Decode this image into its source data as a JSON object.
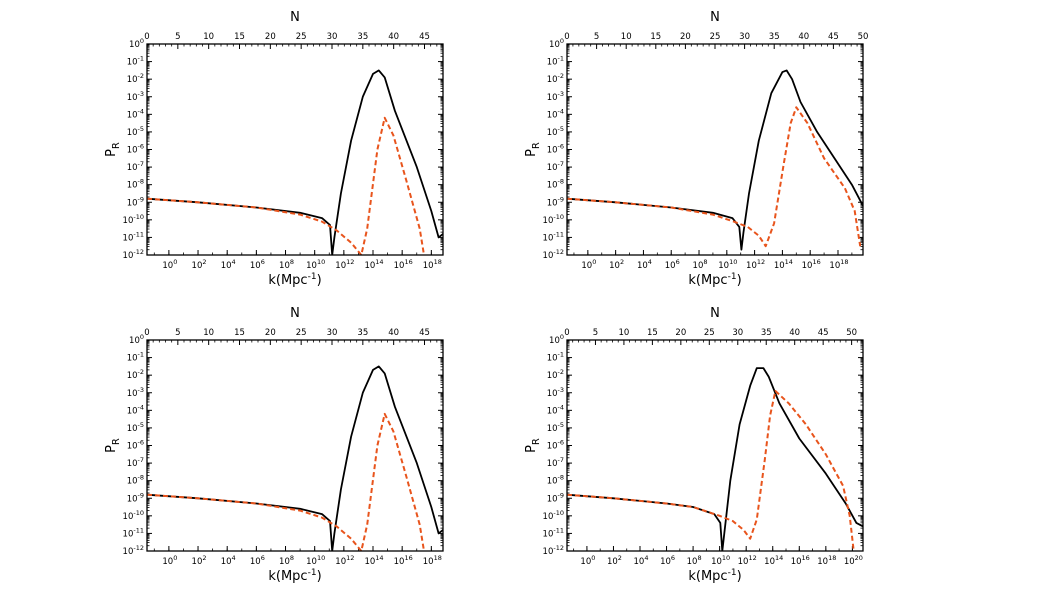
{
  "chart_data": [
    {
      "type": "line",
      "xscale": "log",
      "yscale": "log",
      "xlabel": "k(Mpc",
      "xlabel_sup": "-1",
      "xlabel_end": ")",
      "ylabel": "P",
      "ylabel_sub": "R",
      "top_label": "N",
      "xlim_log10": [
        -1.5,
        18.8
      ],
      "ylim_log10": [
        -12,
        0
      ],
      "top_xlim": [
        0,
        48
      ],
      "x_ticks_log10": [
        0,
        2,
        4,
        6,
        8,
        10,
        12,
        14,
        16,
        18
      ],
      "y_ticks_log10": [
        0,
        -1,
        -2,
        -3,
        -4,
        -5,
        -6,
        -7,
        -8,
        -9,
        -10,
        -11,
        -12
      ],
      "top_ticks": [
        0,
        5,
        10,
        15,
        20,
        25,
        30,
        35,
        40,
        45
      ],
      "series": [
        {
          "style": "solid",
          "color": "#000000",
          "points": [
            [
              -1.5,
              -8.8
            ],
            [
              2,
              -9.0
            ],
            [
              6,
              -9.3
            ],
            [
              9,
              -9.6
            ],
            [
              10.5,
              -9.9
            ],
            [
              11.05,
              -10.3
            ],
            [
              11.2,
              -12
            ],
            [
              11.35,
              -11.0
            ],
            [
              11.8,
              -8.5
            ],
            [
              12.5,
              -5.5
            ],
            [
              13.3,
              -3.0
            ],
            [
              14.0,
              -1.7
            ],
            [
              14.4,
              -1.5
            ],
            [
              14.8,
              -1.9
            ],
            [
              15.5,
              -3.8
            ],
            [
              17,
              -7.0
            ],
            [
              18.0,
              -9.5
            ],
            [
              18.5,
              -11.0
            ],
            [
              18.8,
              -10.8
            ]
          ]
        },
        {
          "style": "dashed",
          "color": "#E8541C",
          "points": [
            [
              -1.5,
              -8.8
            ],
            [
              2,
              -9.0
            ],
            [
              6,
              -9.3
            ],
            [
              9,
              -9.7
            ],
            [
              10.5,
              -10.1
            ],
            [
              11.5,
              -10.6
            ],
            [
              12.5,
              -11.3
            ],
            [
              13.2,
              -12
            ],
            [
              13.6,
              -10.5
            ],
            [
              14.3,
              -6.0
            ],
            [
              14.8,
              -4.2
            ],
            [
              15.4,
              -5.2
            ],
            [
              16.3,
              -7.8
            ],
            [
              17.2,
              -10.5
            ],
            [
              17.5,
              -12
            ]
          ]
        }
      ]
    },
    {
      "type": "line",
      "xscale": "log",
      "yscale": "log",
      "xlabel": "k(Mpc",
      "xlabel_sup": "-1",
      "xlabel_end": ")",
      "ylabel": "P",
      "ylabel_sub": "R",
      "top_label": "N",
      "xlim_log10": [
        -1.5,
        19.8
      ],
      "ylim_log10": [
        -12,
        0
      ],
      "top_xlim": [
        0,
        50
      ],
      "x_ticks_log10": [
        0,
        2,
        4,
        6,
        8,
        10,
        12,
        14,
        16,
        18
      ],
      "y_ticks_log10": [
        0,
        -1,
        -2,
        -3,
        -4,
        -5,
        -6,
        -7,
        -8,
        -9,
        -10,
        -11,
        -12
      ],
      "top_ticks": [
        0,
        5,
        10,
        15,
        20,
        25,
        30,
        35,
        40,
        45,
        50
      ],
      "series": [
        {
          "style": "solid",
          "color": "#000000",
          "points": [
            [
              -1.5,
              -8.8
            ],
            [
              2,
              -9.0
            ],
            [
              6,
              -9.3
            ],
            [
              9,
              -9.6
            ],
            [
              10.4,
              -9.9
            ],
            [
              10.9,
              -10.4
            ],
            [
              11.05,
              -11.7
            ],
            [
              11.2,
              -10.7
            ],
            [
              11.6,
              -8.5
            ],
            [
              12.3,
              -5.5
            ],
            [
              13.2,
              -2.8
            ],
            [
              14.0,
              -1.6
            ],
            [
              14.3,
              -1.5
            ],
            [
              14.7,
              -2.0
            ],
            [
              15.3,
              -3.3
            ],
            [
              16.5,
              -5.0
            ],
            [
              18,
              -6.8
            ],
            [
              19.0,
              -8.0
            ],
            [
              19.8,
              -9.2
            ]
          ]
        },
        {
          "style": "dashed",
          "color": "#E8541C",
          "points": [
            [
              -1.5,
              -8.8
            ],
            [
              2,
              -9.0
            ],
            [
              6,
              -9.3
            ],
            [
              9,
              -9.7
            ],
            [
              10.5,
              -10.1
            ],
            [
              11.5,
              -10.4
            ],
            [
              12.3,
              -10.9
            ],
            [
              12.8,
              -11.5
            ],
            [
              13.4,
              -10.2
            ],
            [
              14.1,
              -6.8
            ],
            [
              14.6,
              -4.5
            ],
            [
              15.0,
              -3.6
            ],
            [
              15.8,
              -4.5
            ],
            [
              17,
              -6.5
            ],
            [
              18.5,
              -8.2
            ],
            [
              19.2,
              -9.5
            ],
            [
              19.6,
              -11.5
            ]
          ]
        }
      ]
    },
    {
      "type": "line",
      "xscale": "log",
      "yscale": "log",
      "xlabel": "k(Mpc",
      "xlabel_sup": "-1",
      "xlabel_end": ")",
      "ylabel": "P",
      "ylabel_sub": "R",
      "top_label": "N",
      "xlim_log10": [
        -1.5,
        18.8
      ],
      "ylim_log10": [
        -12,
        0
      ],
      "top_xlim": [
        0,
        48
      ],
      "x_ticks_log10": [
        0,
        2,
        4,
        6,
        8,
        10,
        12,
        14,
        16,
        18
      ],
      "y_ticks_log10": [
        0,
        -1,
        -2,
        -3,
        -4,
        -5,
        -6,
        -7,
        -8,
        -9,
        -10,
        -11,
        -12
      ],
      "top_ticks": [
        0,
        5,
        10,
        15,
        20,
        25,
        30,
        35,
        40,
        45
      ],
      "series": [
        {
          "style": "solid",
          "color": "#000000",
          "points": [
            [
              -1.5,
              -8.8
            ],
            [
              2,
              -9.0
            ],
            [
              6,
              -9.3
            ],
            [
              9,
              -9.6
            ],
            [
              10.5,
              -9.9
            ],
            [
              11.05,
              -10.3
            ],
            [
              11.2,
              -12
            ],
            [
              11.35,
              -11.0
            ],
            [
              11.8,
              -8.5
            ],
            [
              12.5,
              -5.5
            ],
            [
              13.3,
              -3.0
            ],
            [
              14.0,
              -1.7
            ],
            [
              14.4,
              -1.5
            ],
            [
              14.8,
              -1.9
            ],
            [
              15.5,
              -3.8
            ],
            [
              17,
              -7.0
            ],
            [
              18.0,
              -9.5
            ],
            [
              18.5,
              -11.0
            ],
            [
              18.8,
              -10.8
            ]
          ]
        },
        {
          "style": "dashed",
          "color": "#E8541C",
          "points": [
            [
              -1.5,
              -8.8
            ],
            [
              2,
              -9.0
            ],
            [
              6,
              -9.3
            ],
            [
              9,
              -9.7
            ],
            [
              10.5,
              -10.1
            ],
            [
              11.5,
              -10.6
            ],
            [
              12.5,
              -11.3
            ],
            [
              13.2,
              -12
            ],
            [
              13.6,
              -10.5
            ],
            [
              14.3,
              -6.0
            ],
            [
              14.8,
              -4.2
            ],
            [
              15.4,
              -5.2
            ],
            [
              16.3,
              -7.8
            ],
            [
              17.2,
              -10.5
            ],
            [
              17.5,
              -12
            ]
          ]
        }
      ]
    },
    {
      "type": "line",
      "xscale": "log",
      "yscale": "log",
      "xlabel": "k(Mpc",
      "xlabel_sup": "-1",
      "xlabel_end": ")",
      "ylabel": "P",
      "ylabel_sub": "R",
      "top_label": "N",
      "xlim_log10": [
        -1.5,
        20.8
      ],
      "ylim_log10": [
        -12,
        0
      ],
      "top_xlim": [
        0,
        52
      ],
      "x_ticks_log10": [
        0,
        2,
        4,
        6,
        8,
        10,
        12,
        14,
        16,
        18,
        20
      ],
      "y_ticks_log10": [
        0,
        -1,
        -2,
        -3,
        -4,
        -5,
        -6,
        -7,
        -8,
        -9,
        -10,
        -11,
        -12
      ],
      "top_ticks": [
        0,
        5,
        10,
        15,
        20,
        25,
        30,
        35,
        40,
        45,
        50
      ],
      "series": [
        {
          "style": "solid",
          "color": "#000000",
          "points": [
            [
              -1.5,
              -8.8
            ],
            [
              2,
              -9.0
            ],
            [
              6,
              -9.3
            ],
            [
              8,
              -9.5
            ],
            [
              9.6,
              -9.9
            ],
            [
              10.05,
              -10.4
            ],
            [
              10.2,
              -12
            ],
            [
              10.35,
              -11.0
            ],
            [
              10.8,
              -8.0
            ],
            [
              11.5,
              -4.8
            ],
            [
              12.3,
              -2.6
            ],
            [
              12.8,
              -1.6
            ],
            [
              13.3,
              -1.6
            ],
            [
              13.7,
              -2.1
            ],
            [
              14.5,
              -3.6
            ],
            [
              16,
              -5.6
            ],
            [
              18,
              -7.6
            ],
            [
              19.5,
              -9.3
            ],
            [
              20.3,
              -10.4
            ],
            [
              20.8,
              -10.6
            ]
          ]
        },
        {
          "style": "dashed",
          "color": "#E8541C",
          "points": [
            [
              -1.5,
              -8.8
            ],
            [
              2,
              -9.0
            ],
            [
              6,
              -9.3
            ],
            [
              8,
              -9.5
            ],
            [
              10,
              -10.0
            ],
            [
              11,
              -10.3
            ],
            [
              11.8,
              -10.8
            ],
            [
              12.3,
              -11.3
            ],
            [
              12.8,
              -10.2
            ],
            [
              13.4,
              -6.8
            ],
            [
              13.8,
              -4.3
            ],
            [
              14.2,
              -2.9
            ],
            [
              15.2,
              -3.6
            ],
            [
              16.5,
              -4.8
            ],
            [
              18,
              -6.5
            ],
            [
              19.3,
              -8.3
            ],
            [
              19.8,
              -10
            ],
            [
              20.1,
              -12
            ]
          ]
        }
      ]
    }
  ]
}
